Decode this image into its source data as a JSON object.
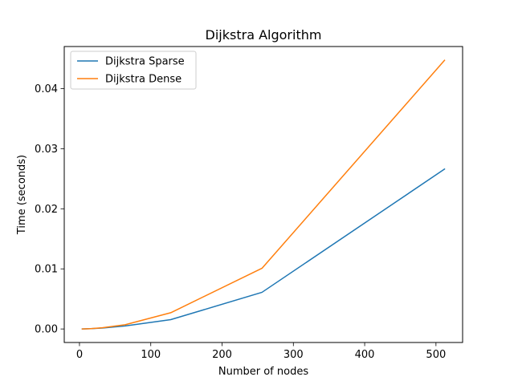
{
  "chart_data": {
    "type": "line",
    "title": "Dijkstra Algorithm",
    "xlabel": "Number of nodes",
    "ylabel": "Time (seconds)",
    "xlim": [
      -21.35,
      537.35
    ],
    "ylim": [
      -0.00225,
      0.047
    ],
    "xticks": [
      0,
      100,
      200,
      300,
      400,
      500
    ],
    "xtick_labels": [
      "0",
      "100",
      "200",
      "300",
      "400",
      "500"
    ],
    "yticks": [
      0.0,
      0.01,
      0.02,
      0.03,
      0.04
    ],
    "ytick_labels": [
      "0.00",
      "0.01",
      "0.02",
      "0.03",
      "0.04"
    ],
    "grid": false,
    "legend_position": "upper-left",
    "x": [
      4,
      8,
      16,
      32,
      64,
      128,
      256,
      512
    ],
    "series": [
      {
        "name": "Dijkstra Sparse",
        "color": "#1f77b4",
        "values": [
          1e-05,
          2e-05,
          5e-05,
          0.00015,
          0.0005,
          0.00155,
          0.0061,
          0.0266
        ]
      },
      {
        "name": "Dijkstra Dense",
        "color": "#ff7f0e",
        "values": [
          1e-05,
          2e-05,
          6e-05,
          0.0002,
          0.0007,
          0.0027,
          0.0101,
          0.0447
        ]
      }
    ]
  }
}
